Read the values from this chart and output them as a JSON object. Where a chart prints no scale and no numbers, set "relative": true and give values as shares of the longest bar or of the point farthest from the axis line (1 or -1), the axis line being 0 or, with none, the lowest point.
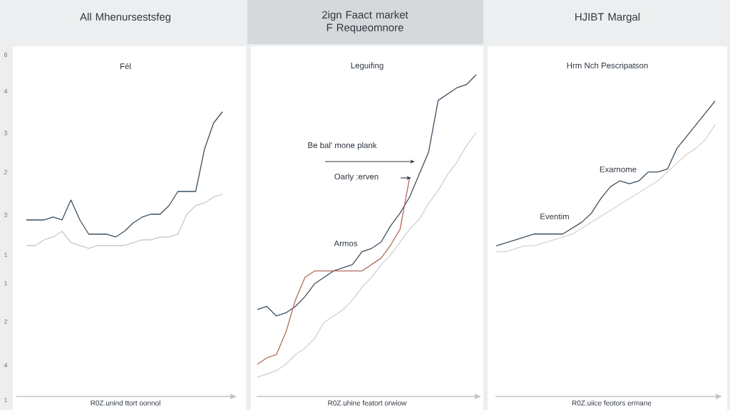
{
  "chart_data": [
    {
      "type": "line",
      "title": "All Mhenursestsfeg",
      "subtitle": "Fél",
      "xlabel": "R0Z.unind ttort oonnol",
      "relative": true,
      "annotations": [
        "6",
        "4",
        "3",
        "2",
        "3",
        "1",
        "1",
        "2",
        "4",
        "1"
      ],
      "categories": [
        null,
        null,
        null,
        null,
        null,
        null,
        null,
        null,
        null,
        null,
        null,
        null,
        null,
        null,
        null,
        null,
        null,
        null,
        null,
        null,
        null,
        null,
        null
      ],
      "series": [
        {
          "color": "#3d4f5f",
          "values": [
            0.62,
            0.62,
            0.62,
            0.63,
            0.62,
            0.69,
            0.62,
            0.57,
            0.57,
            0.57,
            0.56,
            0.58,
            0.61,
            0.63,
            0.64,
            0.64,
            0.67,
            0.72,
            0.72,
            0.72,
            0.87,
            0.96,
            1
          ]
        },
        {
          "color": "#c8c8c8",
          "values": [
            0.53,
            0.53,
            0.55,
            0.56,
            0.58,
            0.54,
            0.53,
            0.52,
            0.53,
            0.53,
            0.53,
            0.53,
            0.54,
            0.55,
            0.55,
            0.56,
            0.56,
            0.57,
            0.64,
            0.67,
            0.68,
            0.7,
            0.71
          ]
        }
      ]
    },
    {
      "type": "line",
      "title": "2ign Faact market F Requeomnore",
      "subtitle": "Leguifing",
      "xlabel": "R0Z.uhine featort orwiow",
      "relative": true,
      "annotations": [
        "Be bal' mone plank",
        "Oarly :erven",
        "Armos"
      ],
      "categories": [
        null,
        null,
        null,
        null,
        null,
        null,
        null,
        null,
        null,
        null,
        null,
        null,
        null,
        null,
        null,
        null,
        null,
        null,
        null,
        null,
        null,
        null,
        null,
        null
      ],
      "series": [
        {
          "color": "#3d4f5f",
          "values": [
            0.27,
            0.28,
            0.25,
            0.26,
            0.28,
            0.31,
            0.35,
            0.37,
            0.39,
            0.4,
            0.41,
            0.45,
            0.46,
            0.48,
            0.53,
            0.57,
            0.62,
            0.69,
            0.76,
            0.92,
            0.94,
            0.96,
            0.97,
            1
          ]
        },
        {
          "color": "#b5695a",
          "values": [
            0.1,
            0.12,
            0.13,
            0.2,
            0.3,
            0.37,
            0.39,
            0.39,
            0.39,
            0.39,
            0.39,
            0.39,
            0.41,
            0.43,
            0.47,
            0.52,
            0.68,
            null,
            null,
            null,
            null,
            null,
            null,
            null
          ]
        },
        {
          "color": "#cfcfcf",
          "values": [
            0.06,
            0.07,
            0.08,
            0.1,
            0.13,
            0.15,
            0.18,
            0.23,
            0.25,
            0.27,
            0.3,
            0.34,
            0.37,
            0.41,
            0.44,
            0.48,
            0.52,
            0.55,
            0.6,
            0.64,
            0.69,
            0.73,
            0.78,
            0.82
          ]
        }
      ]
    },
    {
      "type": "line",
      "title": "HJIBT Margal",
      "subtitle": "Hrm Nch Pescripatson",
      "xlabel": "R0Z.uiice feotors ermane",
      "relative": true,
      "annotations": [
        "Exarnome",
        "Eventim"
      ],
      "categories": [
        null,
        null,
        null,
        null,
        null,
        null,
        null,
        null,
        null,
        null,
        null,
        null,
        null,
        null,
        null,
        null,
        null,
        null,
        null,
        null,
        null,
        null,
        null,
        null
      ],
      "series": [
        {
          "color": "#3d4f5f",
          "values": [
            0.51,
            0.52,
            0.53,
            0.54,
            0.55,
            0.55,
            0.55,
            0.55,
            0.57,
            0.59,
            0.62,
            0.67,
            0.71,
            0.73,
            0.72,
            0.73,
            0.76,
            0.76,
            0.77,
            0.84,
            0.88,
            0.92,
            0.96,
            1
          ]
        },
        {
          "color": "#d9d3cc",
          "values": [
            0.49,
            0.49,
            0.5,
            0.51,
            0.51,
            0.52,
            0.53,
            0.54,
            0.55,
            0.57,
            0.59,
            0.61,
            0.63,
            0.65,
            0.67,
            0.69,
            0.71,
            0.73,
            0.76,
            0.79,
            0.82,
            0.84,
            0.87,
            0.92
          ]
        }
      ]
    }
  ]
}
